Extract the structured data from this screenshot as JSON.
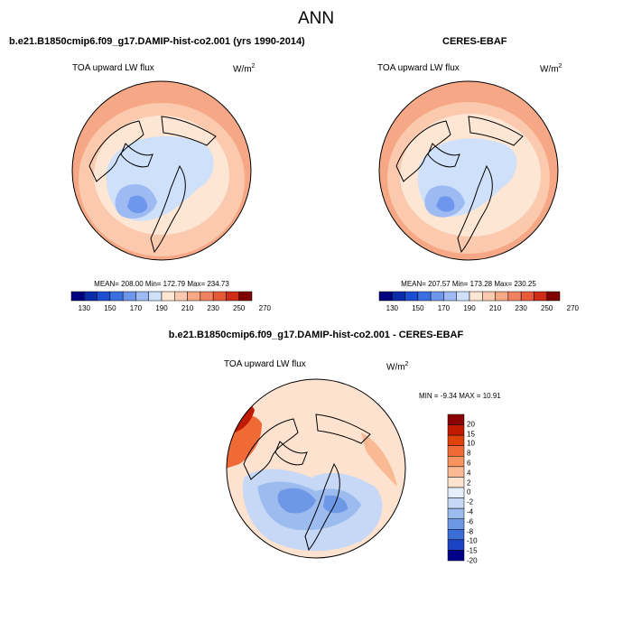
{
  "figure": {
    "title": "ANN"
  },
  "panels": [
    {
      "title": "b.e21.B1850cmip6.f09_g17.DAMIP-hist-co2.001 (yrs 1990-2014)",
      "variable": "TOA upward LW flux",
      "units_base": "W/m",
      "units_sup": "2",
      "stats": {
        "mean": "208.00",
        "min": "172.79",
        "max": "234.73",
        "text": "MEAN= 208.00  Min= 172.79  Max= 234.73"
      },
      "colorbar_ticks": [
        "130",
        "150",
        "170",
        "190",
        "210",
        "230",
        "250",
        "270"
      ]
    },
    {
      "title": "CERES-EBAF",
      "variable": "TOA upward LW flux",
      "units_base": "W/m",
      "units_sup": "2",
      "stats": {
        "mean": "207.57",
        "min": "173.28",
        "max": "230.25",
        "text": "MEAN= 207.57  Min= 173.28  Max= 230.25"
      },
      "colorbar_ticks": [
        "130",
        "150",
        "170",
        "190",
        "210",
        "230",
        "250",
        "270"
      ]
    },
    {
      "title": "b.e21.B1850cmip6.f09_g17.DAMIP-hist-co2.001 - CERES-EBAF",
      "variable": "TOA upward LW flux",
      "units_base": "W/m",
      "units_sup": "2",
      "stats": {
        "min": "-9.34",
        "max": "10.91",
        "text": "MIN =  -9.34 MAX =  10.91"
      },
      "colorbar_ticks": [
        "20",
        "15",
        "10",
        "8",
        "6",
        "4",
        "2",
        "0",
        "-2",
        "-4",
        "-6",
        "-8",
        "-10",
        "-15",
        "-20"
      ]
    }
  ],
  "colors": {
    "abs_scale": [
      "#00007f",
      "#0a2ca8",
      "#1c4fd0",
      "#3a6fe0",
      "#6d96ec",
      "#9dbaf2",
      "#cfe0fa",
      "#fde6d4",
      "#fbc9ad",
      "#f6a886",
      "#ef8260",
      "#e65a3a",
      "#cc2c18",
      "#7f0000"
    ],
    "diff_scale": [
      "#8b0000",
      "#c01a00",
      "#e0420c",
      "#ef6a34",
      "#f6935f",
      "#f9b992",
      "#fde3cf",
      "#e5eefb",
      "#c6d8f6",
      "#9cbcf0",
      "#6e98e6",
      "#3d6ed8",
      "#1a44c4",
      "#00008b"
    ]
  }
}
